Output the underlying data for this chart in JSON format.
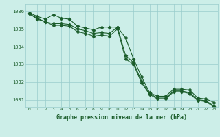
{
  "title": "Graphe pression niveau de la mer (hPa)",
  "background_color": "#cceee8",
  "grid_color": "#99cccc",
  "line_color": "#1a5c2a",
  "text_color": "#1a5c2a",
  "ylim": [
    1030.6,
    1036.4
  ],
  "xlim": [
    -0.5,
    23.5
  ],
  "yticks": [
    1031,
    1032,
    1033,
    1034,
    1035,
    1036
  ],
  "xtick_labels": [
    "0",
    "1",
    "2",
    "3",
    "4",
    "5",
    "6",
    "7",
    "8",
    "9",
    "10",
    "11",
    "12",
    "13",
    "14",
    "15",
    "16",
    "17",
    "18",
    "19",
    "20",
    "21",
    "22",
    "23"
  ],
  "series1": [
    1035.9,
    1035.7,
    1035.55,
    1035.8,
    1035.6,
    1035.55,
    1035.15,
    1035.05,
    1034.95,
    1035.1,
    1035.1,
    1035.1,
    1034.5,
    1033.3,
    1032.3,
    1031.4,
    1031.2,
    1031.2,
    1031.6,
    1031.6,
    1031.55,
    1031.1,
    1031.05,
    1030.85
  ],
  "series2": [
    1035.85,
    1035.6,
    1035.4,
    1035.3,
    1035.3,
    1035.25,
    1035.0,
    1034.9,
    1034.75,
    1034.8,
    1034.75,
    1035.1,
    1033.5,
    1033.1,
    1032.05,
    1031.35,
    1031.1,
    1031.1,
    1031.5,
    1031.5,
    1031.4,
    1031.0,
    1030.95,
    1030.65
  ],
  "series3": [
    1035.85,
    1035.55,
    1035.4,
    1035.2,
    1035.2,
    1035.15,
    1034.85,
    1034.75,
    1034.6,
    1034.65,
    1034.6,
    1035.0,
    1033.3,
    1033.0,
    1031.95,
    1031.3,
    1031.05,
    1031.05,
    1031.45,
    1031.45,
    1031.35,
    1030.95,
    1030.9,
    1030.6
  ]
}
